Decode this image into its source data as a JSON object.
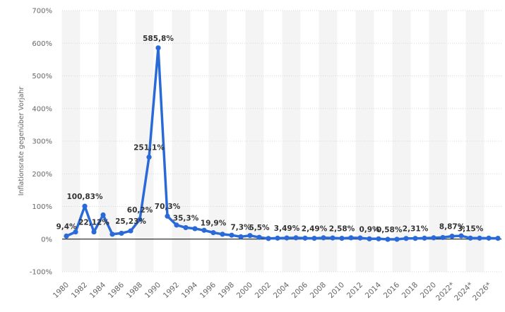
{
  "chart_data": {
    "type": "line",
    "ylabel": "Inflationsrate gegenüber Vorjahr",
    "ylim": [
      -100,
      700
    ],
    "yticks": [
      "-100%",
      "0%",
      "100%",
      "200%",
      "300%",
      "400%",
      "500%",
      "600%",
      "700%"
    ],
    "ytick_values": [
      -100,
      0,
      100,
      200,
      300,
      400,
      500,
      600,
      700
    ],
    "xticks": [
      "1980",
      "1982",
      "1984",
      "1986",
      "1988",
      "1990",
      "1992",
      "1994",
      "1996",
      "1998",
      "2000",
      "2002",
      "2004",
      "2006",
      "2008",
      "2010",
      "2012",
      "2014",
      "2016",
      "2018",
      "2020",
      "2022*",
      "2024*",
      "2026*"
    ],
    "grid": true,
    "line_color": "#2a6ad8",
    "x": [
      1980,
      1981,
      1982,
      1983,
      1984,
      1985,
      1986,
      1987,
      1988,
      1989,
      1990,
      1991,
      1992,
      1993,
      1994,
      1995,
      1996,
      1997,
      1998,
      1999,
      2000,
      2001,
      2002,
      2003,
      2004,
      2005,
      2006,
      2007,
      2008,
      2009,
      2010,
      2011,
      2012,
      2013,
      2014,
      2015,
      2016,
      2017,
      2018,
      2019,
      2020,
      2021,
      2022,
      2023,
      2024,
      2025,
      2026,
      2027
    ],
    "values": [
      9.4,
      22,
      100.83,
      22.12,
      74,
      15,
      18,
      25.23,
      60.2,
      251.1,
      585.8,
      70.3,
      43,
      35.3,
      32,
      27,
      19.9,
      15,
      12,
      7.3,
      11,
      5.5,
      2,
      3,
      3.49,
      4,
      3,
      2.49,
      4,
      3.5,
      2.58,
      4,
      3.5,
      0.9,
      1,
      -0.58,
      -0.5,
      2,
      2.31,
      3,
      4,
      5,
      8.87,
      10,
      3.15,
      3,
      3,
      2.5
    ],
    "data_labels": [
      {
        "year": 1980,
        "text": "9,4%"
      },
      {
        "year": 1982,
        "text": "100,83%"
      },
      {
        "year": 1983,
        "text": "22,12%"
      },
      {
        "year": 1987,
        "text": "25,23%"
      },
      {
        "year": 1988,
        "text": "60,2%"
      },
      {
        "year": 1989,
        "text": "251,1%"
      },
      {
        "year": 1990,
        "text": "585,8%"
      },
      {
        "year": 1991,
        "text": "70,3%"
      },
      {
        "year": 1993,
        "text": "35,3%"
      },
      {
        "year": 1996,
        "text": "19,9%"
      },
      {
        "year": 1999,
        "text": "7,3%"
      },
      {
        "year": 2001,
        "text": "5,5%"
      },
      {
        "year": 2004,
        "text": "3,49%"
      },
      {
        "year": 2007,
        "text": "2,49%"
      },
      {
        "year": 2010,
        "text": "2,58%"
      },
      {
        "year": 2013,
        "text": "0,9%"
      },
      {
        "year": 2015,
        "text": "-0,58%"
      },
      {
        "year": 2018,
        "text": "2,31%"
      },
      {
        "year": 2022,
        "text": "8,87%"
      },
      {
        "year": 2024,
        "text": "3,15%"
      }
    ]
  }
}
